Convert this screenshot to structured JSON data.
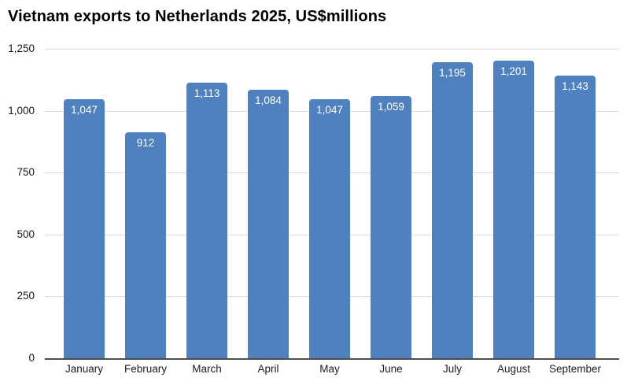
{
  "chart_data": {
    "type": "bar",
    "title": "Vietnam exports to Netherlands 2025, US$millions",
    "categories": [
      "January",
      "February",
      "March",
      "April",
      "May",
      "June",
      "July",
      "August",
      "September"
    ],
    "values": [
      1047,
      912,
      1113,
      1084,
      1047,
      1059,
      1195,
      1201,
      1143
    ],
    "value_labels": [
      "1,047",
      "912",
      "1,113",
      "1,084",
      "1,047",
      "1,059",
      "1,195",
      "1,201",
      "1,143"
    ],
    "xlabel": "",
    "ylabel": "",
    "ylim": [
      0,
      1250
    ],
    "yticks": [
      0,
      250,
      500,
      750,
      1000,
      1250
    ],
    "ytick_labels": [
      "0",
      "250",
      "500",
      "750",
      "1,000",
      "1,250"
    ],
    "grid": true,
    "legend": false,
    "bar_color": "#4e81bd",
    "bar_label_color": "#ffffff",
    "gridline_color": "#dcdcdc",
    "baseline_color": "#4d4d4d",
    "axis_text_color": "#1a1a1a",
    "title_color": "#000000",
    "background_color": "#ffffff"
  }
}
